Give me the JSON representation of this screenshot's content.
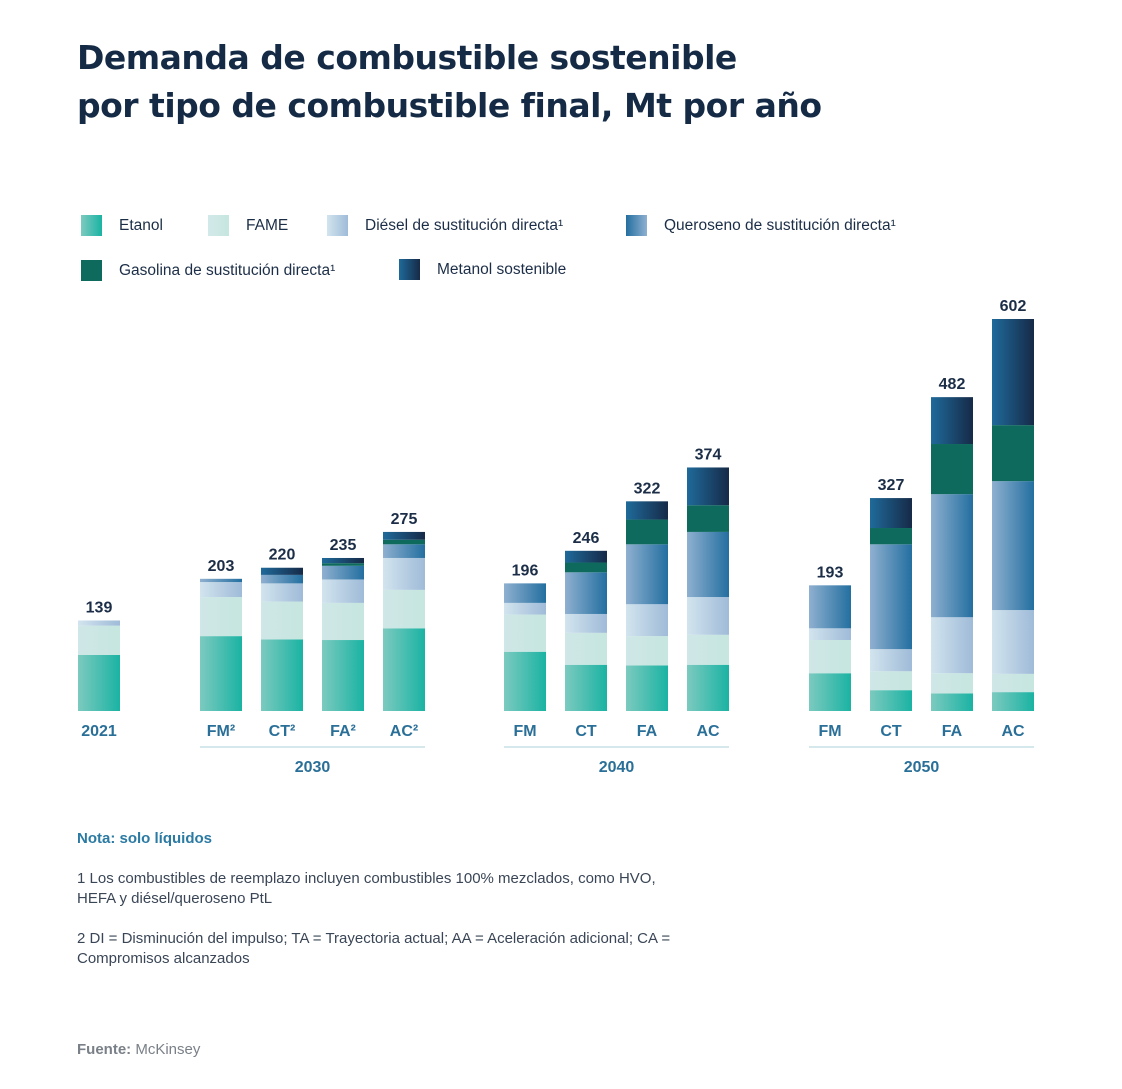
{
  "title_lines": [
    "Demanda de combustible sostenible",
    "por tipo de combustible final, Mt por año"
  ],
  "legend": [
    {
      "label": "Etanol",
      "key": "etanol"
    },
    {
      "label": "FAME",
      "key": "fame"
    },
    {
      "label": "Diésel de sustitución directa¹",
      "key": "diesel"
    },
    {
      "label": "Queroseno de sustitución directa¹",
      "key": "queroseno"
    },
    {
      "label": "Gasolina de sustitución directa¹",
      "key": "gasolina"
    },
    {
      "label": "Metanol sostenible",
      "key": "metanol"
    }
  ],
  "colors": {
    "etanol": [
      "#7ccabf",
      "#1ab3a3"
    ],
    "fame": [
      "#cfe7e7",
      "#c6e6df"
    ],
    "diesel": [
      "#d2e4ee",
      "#9fbbd8"
    ],
    "queroseno": [
      "#8fb0d0",
      "#236fa0"
    ],
    "gasolina": [
      "#0d6a5c",
      "#0d6a5c"
    ],
    "metanol": [
      "#1f6a9a",
      "#162a47"
    ],
    "axis_label": "#2a6f98",
    "total_label": "#1c2e47",
    "group_line": "#d5e8ec"
  },
  "chart_data": {
    "type": "bar",
    "stacked": true,
    "title": "Demanda de combustible sostenible por tipo de combustible final, Mt por año",
    "xlabel": "",
    "ylabel": "Mt por año",
    "ylim": [
      0,
      602
    ],
    "grid": false,
    "legend_position": "top",
    "series_order": [
      "etanol",
      "fame",
      "diesel",
      "queroseno",
      "gasolina",
      "metanol"
    ],
    "series_names": {
      "etanol": "Etanol",
      "fame": "FAME",
      "diesel": "Diésel de sustitución directa",
      "queroseno": "Queroseno de sustitución directa",
      "gasolina": "Gasolina de sustitución directa",
      "metanol": "Metanol sostenible"
    },
    "groups": [
      {
        "label": "",
        "bars": [
          {
            "category": "2021",
            "total": 139,
            "values": {
              "etanol": 86,
              "fame": 45,
              "diesel": 8,
              "queroseno": 0,
              "gasolina": 0,
              "metanol": 0
            }
          }
        ]
      },
      {
        "label": "2030",
        "bars": [
          {
            "category": "FM²",
            "total": 203,
            "values": {
              "etanol": 115,
              "fame": 60,
              "diesel": 23,
              "queroseno": 5,
              "gasolina": 0,
              "metanol": 0
            }
          },
          {
            "category": "CT²",
            "total": 220,
            "values": {
              "etanol": 110,
              "fame": 58,
              "diesel": 28,
              "queroseno": 13,
              "gasolina": 0,
              "metanol": 11
            }
          },
          {
            "category": "FA²",
            "total": 235,
            "values": {
              "etanol": 109,
              "fame": 57,
              "diesel": 36,
              "queroseno": 21,
              "gasolina": 4,
              "metanol": 8
            }
          },
          {
            "category": "AC²",
            "total": 275,
            "values": {
              "etanol": 127,
              "fame": 59,
              "diesel": 49,
              "queroseno": 21,
              "gasolina": 7,
              "metanol": 12
            }
          }
        ]
      },
      {
        "label": "2040",
        "bars": [
          {
            "category": "FM",
            "total": 196,
            "values": {
              "etanol": 91,
              "fame": 57,
              "diesel": 18,
              "queroseno": 30,
              "gasolina": 0,
              "metanol": 0
            }
          },
          {
            "category": "CT",
            "total": 246,
            "values": {
              "etanol": 71,
              "fame": 49,
              "diesel": 29,
              "queroseno": 64,
              "gasolina": 15,
              "metanol": 18
            }
          },
          {
            "category": "FA",
            "total": 322,
            "values": {
              "etanol": 70,
              "fame": 45,
              "diesel": 49,
              "queroseno": 92,
              "gasolina": 38,
              "metanol": 28
            }
          },
          {
            "category": "AC",
            "total": 374,
            "values": {
              "etanol": 71,
              "fame": 46,
              "diesel": 58,
              "queroseno": 100,
              "gasolina": 41,
              "metanol": 58
            }
          }
        ]
      },
      {
        "label": "2050",
        "bars": [
          {
            "category": "FM",
            "total": 193,
            "values": {
              "etanol": 58,
              "fame": 51,
              "diesel": 18,
              "queroseno": 66,
              "gasolina": 0,
              "metanol": 0
            }
          },
          {
            "category": "CT",
            "total": 327,
            "values": {
              "etanol": 32,
              "fame": 29,
              "diesel": 34,
              "queroseno": 161,
              "gasolina": 25,
              "metanol": 46
            }
          },
          {
            "category": "FA",
            "total": 482,
            "values": {
              "etanol": 27,
              "fame": 31,
              "diesel": 86,
              "queroseno": 189,
              "gasolina": 77,
              "metanol": 72
            }
          },
          {
            "category": "AC",
            "total": 602,
            "values": {
              "etanol": 29,
              "fame": 28,
              "diesel": 98,
              "queroseno": 198,
              "gasolina": 86,
              "metanol": 163
            }
          }
        ]
      }
    ]
  },
  "notes": {
    "title": "Nota: solo líquidos",
    "footnote1": "1 Los combustibles de reemplazo incluyen combustibles 100% mezclados, como HVO, HEFA y diésel/queroseno PtL",
    "footnote2": "2 DI = Disminución del impulso; TA = Trayectoria actual; AA = Aceleración adicional; CA = Compromisos alcanzados"
  },
  "source": {
    "label": "Fuente:",
    "value": "McKinsey"
  }
}
